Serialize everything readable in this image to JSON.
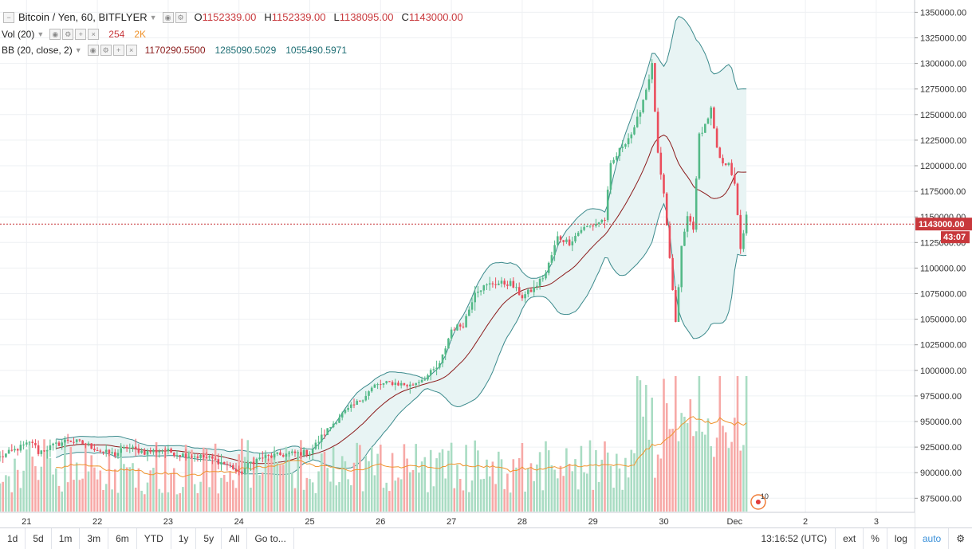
{
  "symbol": {
    "title": "Bitcoin / Yen, 60, BITFLYER",
    "o_label": "O",
    "o_value": "1152339.00",
    "h_label": "H",
    "h_value": "1152339.00",
    "l_label": "L",
    "l_value": "1138095.00",
    "c_label": "C",
    "c_value": "1143000.00"
  },
  "indicators": {
    "vol_label": "Vol (20)",
    "vol_value": "254",
    "vol_ma_value": "2K",
    "bb_label": "BB (20, close, 2)",
    "bb_mid": "1170290.5500",
    "bb_upper": "1285090.5029",
    "bb_lower": "1055490.5971"
  },
  "price_tag": {
    "value": "1143000.00",
    "countdown": "43:07"
  },
  "event_marker": "10",
  "colors": {
    "up": "#53b987",
    "down": "#eb4d5c",
    "vol_up": "#a9dcc3",
    "vol_down": "#f7a9a7",
    "bb_line": "#3b8a8c",
    "bb_fill": "#e8f4f4",
    "basis": "#8b1a1a",
    "vol_ma": "#f0932b",
    "price_line": "#c8383c"
  },
  "chart_data": {
    "type": "candlestick",
    "series_name": "Bitcoin / Yen, 60, BITFLYER",
    "y_ticks": [
      875000,
      900000,
      925000,
      950000,
      975000,
      1000000,
      1025000,
      1050000,
      1075000,
      1100000,
      1125000,
      1150000,
      1175000,
      1200000,
      1225000,
      1250000,
      1275000,
      1300000,
      1325000,
      1350000
    ],
    "y_tick_labels": [
      "875000.00",
      "900000.00",
      "925000.00",
      "950000.00",
      "975000.00",
      "1000000.00",
      "1025000.00",
      "1050000.00",
      "1075000.00",
      "1100000.00",
      "1125000.00",
      "1150000.00",
      "1175000.00",
      "1200000.00",
      "1225000.00",
      "1250000.00",
      "1275000.00",
      "1300000.00",
      "1325000.00",
      "1350000.00"
    ],
    "ylim": [
      862000,
      1362000
    ],
    "x_labels": [
      "21",
      "22",
      "23",
      "24",
      "25",
      "26",
      "27",
      "28",
      "29",
      "30",
      "Dec",
      "2",
      "3"
    ],
    "x_label_hours": [
      0,
      24,
      48,
      72,
      96,
      120,
      144,
      168,
      192,
      216,
      240,
      264,
      288
    ],
    "xlim_hours": [
      -9,
      301
    ],
    "close_anchors": [
      [
        -9,
        915000
      ],
      [
        -2,
        925000
      ],
      [
        2,
        930000
      ],
      [
        4,
        920000
      ],
      [
        8,
        925000
      ],
      [
        14,
        932000
      ],
      [
        20,
        928000
      ],
      [
        26,
        920000
      ],
      [
        30,
        918000
      ],
      [
        34,
        925000
      ],
      [
        40,
        920000
      ],
      [
        46,
        922000
      ],
      [
        52,
        918000
      ],
      [
        58,
        916000
      ],
      [
        62,
        914000
      ],
      [
        66,
        910000
      ],
      [
        70,
        905000
      ],
      [
        72,
        898000
      ],
      [
        76,
        910000
      ],
      [
        80,
        915000
      ],
      [
        88,
        918000
      ],
      [
        96,
        920000
      ],
      [
        100,
        935000
      ],
      [
        106,
        955000
      ],
      [
        112,
        968000
      ],
      [
        118,
        985000
      ],
      [
        124,
        988000
      ],
      [
        130,
        985000
      ],
      [
        136,
        995000
      ],
      [
        140,
        1005000
      ],
      [
        144,
        1040000
      ],
      [
        148,
        1045000
      ],
      [
        150,
        1060000
      ],
      [
        152,
        1078000
      ],
      [
        158,
        1085000
      ],
      [
        164,
        1085000
      ],
      [
        168,
        1072000
      ],
      [
        172,
        1080000
      ],
      [
        176,
        1095000
      ],
      [
        180,
        1130000
      ],
      [
        184,
        1125000
      ],
      [
        188,
        1138000
      ],
      [
        192,
        1142000
      ],
      [
        196,
        1148000
      ],
      [
        198,
        1200000
      ],
      [
        202,
        1220000
      ],
      [
        206,
        1235000
      ],
      [
        208,
        1255000
      ],
      [
        210,
        1275000
      ],
      [
        212,
        1298000
      ],
      [
        214,
        1210000
      ],
      [
        216,
        1170000
      ],
      [
        218,
        1110000
      ],
      [
        220,
        1045000
      ],
      [
        222,
        1120000
      ],
      [
        224,
        1150000
      ],
      [
        226,
        1140000
      ],
      [
        228,
        1230000
      ],
      [
        230,
        1240000
      ],
      [
        232,
        1255000
      ],
      [
        234,
        1215000
      ],
      [
        236,
        1200000
      ],
      [
        238,
        1205000
      ],
      [
        240,
        1180000
      ],
      [
        242,
        1120000
      ],
      [
        244,
        1150000
      ]
    ],
    "bb_period": 20,
    "bb_stddev": 2,
    "volume_ma_period": 20
  },
  "toolbar": {
    "ranges": [
      "1d",
      "5d",
      "1m",
      "3m",
      "6m",
      "YTD",
      "1y",
      "5y",
      "All"
    ],
    "goto": "Go to...",
    "clock": "13:16:52 (UTC)",
    "ext": "ext",
    "percent": "%",
    "log": "log",
    "auto": "auto"
  }
}
